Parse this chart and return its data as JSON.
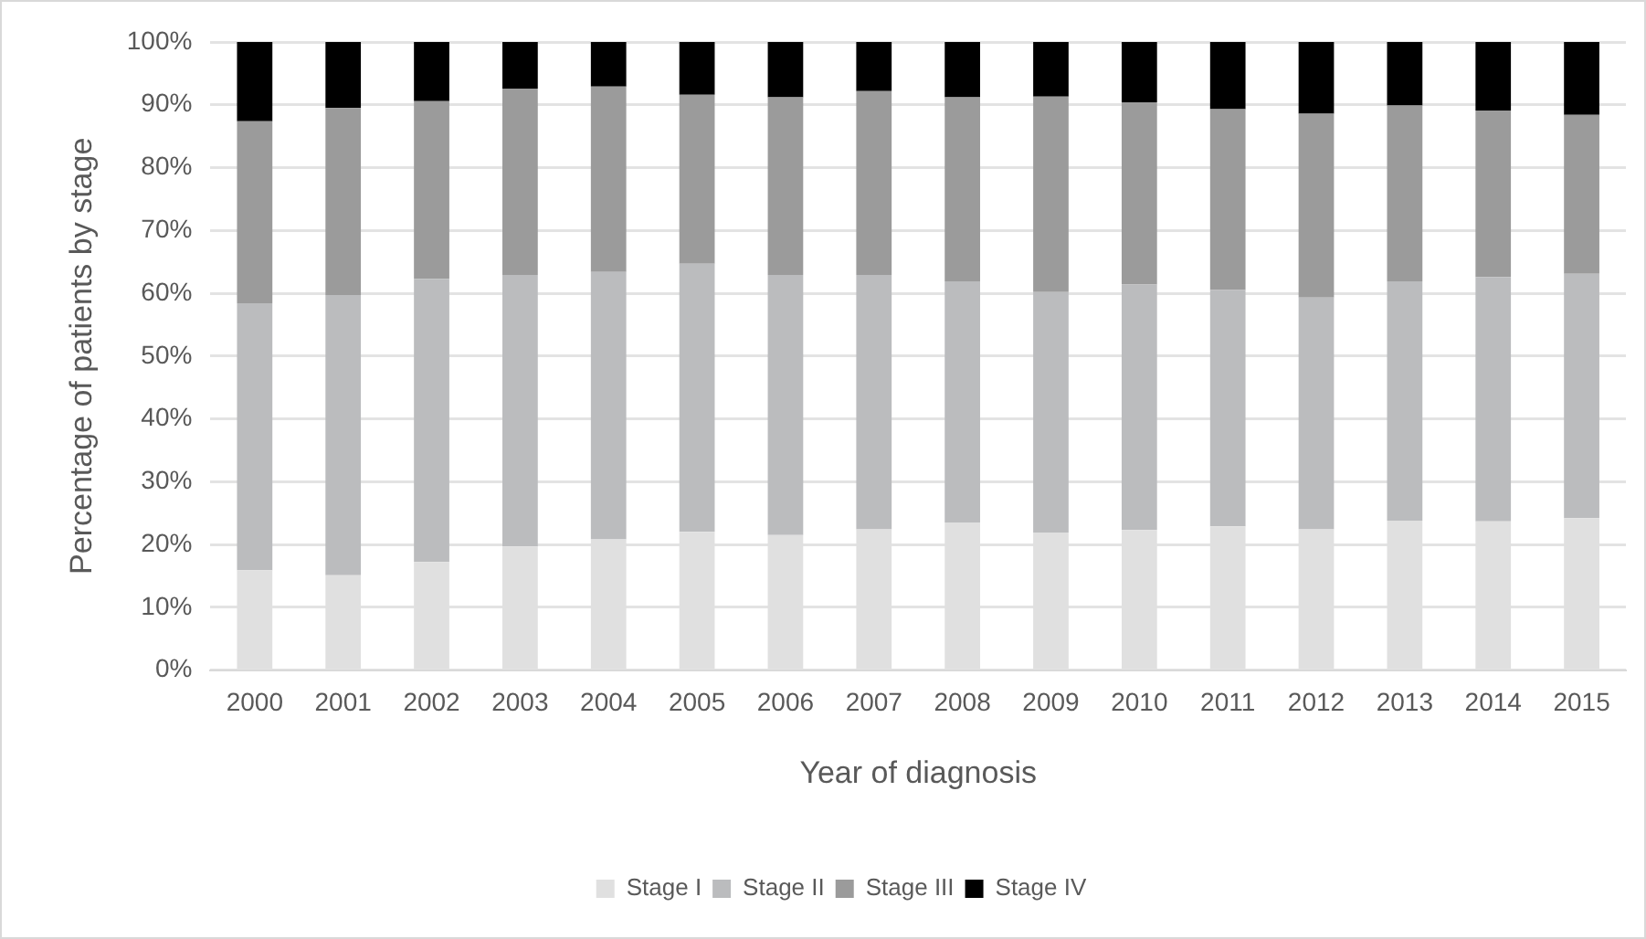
{
  "chart_data": {
    "type": "bar",
    "stacked": true,
    "xlabel": "Year of diagnosis",
    "ylabel": "Percentage of patients by stage",
    "categories": [
      "2000",
      "2001",
      "2002",
      "2003",
      "2004",
      "2005",
      "2006",
      "2007",
      "2008",
      "2009",
      "2010",
      "2011",
      "2012",
      "2013",
      "2014",
      "2015"
    ],
    "series": [
      {
        "name": "Stage I",
        "color": "#e0e0e0",
        "values": [
          15.9,
          15.1,
          17.2,
          19.7,
          20.8,
          22.0,
          21.5,
          22.4,
          23.5,
          21.9,
          22.3,
          22.9,
          22.4,
          23.8,
          23.7,
          24.2
        ]
      },
      {
        "name": "Stage II",
        "color": "#bbbcbe",
        "values": [
          42.5,
          44.6,
          45.1,
          43.2,
          42.6,
          42.7,
          41.4,
          40.5,
          38.4,
          38.3,
          39.1,
          37.6,
          36.9,
          38.1,
          38.9,
          38.9
        ]
      },
      {
        "name": "Stage III",
        "color": "#9b9b9b",
        "values": [
          29.0,
          29.8,
          28.3,
          29.7,
          29.5,
          26.9,
          28.3,
          29.3,
          29.3,
          31.1,
          29.0,
          28.8,
          29.3,
          28.0,
          26.5,
          25.3
        ]
      },
      {
        "name": "Stage IV",
        "color": "#000000",
        "values": [
          12.6,
          10.5,
          9.4,
          7.4,
          7.1,
          8.4,
          8.8,
          7.8,
          8.8,
          8.7,
          9.6,
          10.7,
          11.4,
          10.1,
          10.9,
          11.6
        ]
      }
    ],
    "ylim": [
      0,
      100
    ],
    "yticks": [
      {
        "value": 0,
        "label": "0%"
      },
      {
        "value": 10,
        "label": "10%"
      },
      {
        "value": 20,
        "label": "20%"
      },
      {
        "value": 30,
        "label": "30%"
      },
      {
        "value": 40,
        "label": "40%"
      },
      {
        "value": 50,
        "label": "50%"
      },
      {
        "value": 60,
        "label": "60%"
      },
      {
        "value": 70,
        "label": "70%"
      },
      {
        "value": 80,
        "label": "80%"
      },
      {
        "value": 90,
        "label": "90%"
      },
      {
        "value": 100,
        "label": "100%"
      }
    ],
    "grid": "y",
    "legend": "bottom"
  }
}
